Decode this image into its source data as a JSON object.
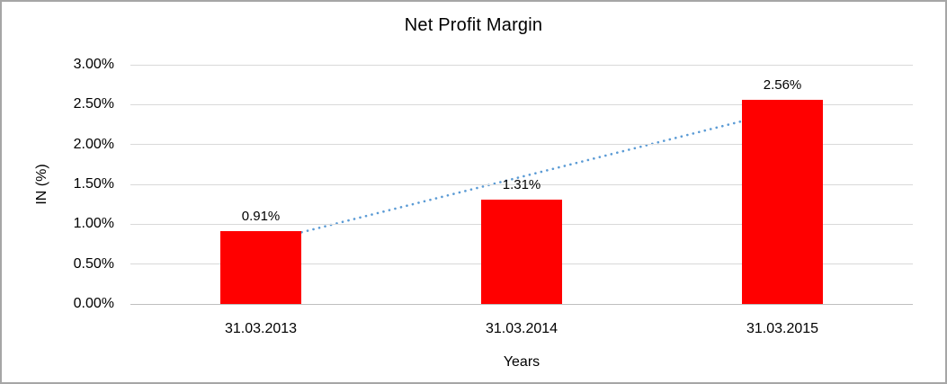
{
  "chart_data": {
    "type": "bar",
    "title": "Net Profit Margin",
    "xlabel": "Years",
    "ylabel": "IN (%)",
    "categories": [
      "31.03.2013",
      "31.03.2014",
      "31.03.2015"
    ],
    "values": [
      0.91,
      1.31,
      2.56
    ],
    "data_labels": [
      "0.91%",
      "1.31%",
      "2.56%"
    ],
    "ylim": [
      0,
      3
    ],
    "ytick_values": [
      0,
      0.5,
      1,
      1.5,
      2,
      2.5,
      3
    ],
    "ytick_labels": [
      "0.00%",
      "0.50%",
      "1.00%",
      "1.50%",
      "2.00%",
      "2.50%",
      "3.00%"
    ],
    "grid": true,
    "legend": "none",
    "bar_color": "#ff0000",
    "gridline_color": "#d9d9d9",
    "baseline_color": "#bfbfbf",
    "trendline": {
      "type": "linear",
      "style": "dotted",
      "color": "#5b9bd5",
      "start_value": 0.77,
      "end_value": 2.42
    }
  }
}
